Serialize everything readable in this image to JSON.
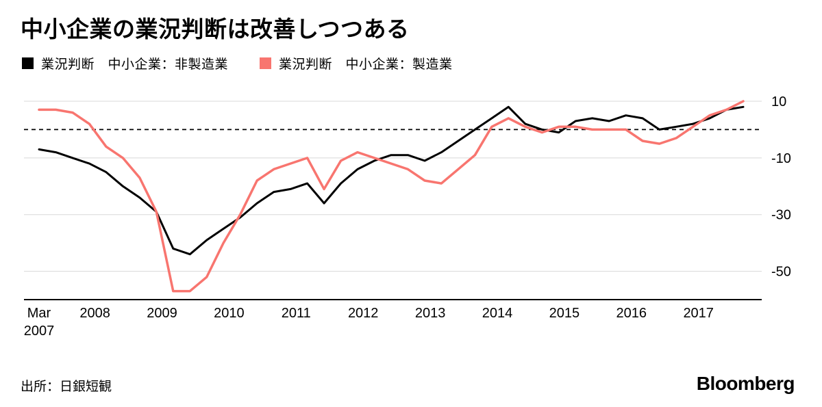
{
  "header": {
    "title": "中小企業の業況判断は改善しつつある"
  },
  "legend": [
    {
      "label": "業況判断　中小企業：非製造業",
      "color": "#000000"
    },
    {
      "label": "業況判断　中小企業：製造業",
      "color": "#f8756f"
    }
  ],
  "footer": {
    "source": "出所：日銀短観",
    "brand": "Bloomberg"
  },
  "chart_data": {
    "type": "line",
    "frequency": "quarterly",
    "x_start": "Mar 2007",
    "x_end": "Sep 2017",
    "x_ticks": [
      {
        "line1": "Mar",
        "line2": "2007"
      },
      {
        "line1": "2008"
      },
      {
        "line1": "2009"
      },
      {
        "line1": "2010"
      },
      {
        "line1": "2011"
      },
      {
        "line1": "2012"
      },
      {
        "line1": "2013"
      },
      {
        "line1": "2014"
      },
      {
        "line1": "2015"
      },
      {
        "line1": "2016"
      },
      {
        "line1": "2017"
      }
    ],
    "ylim": [
      -60,
      10
    ],
    "yticks": [
      10,
      -10,
      -30,
      -50
    ],
    "zero_line": 0,
    "grid_color": "#d8d8d8",
    "series": [
      {
        "name": "業況判断　中小企業：非製造業",
        "color": "#000000",
        "stroke_width": 3,
        "values": [
          -7,
          -8,
          -10,
          -12,
          -15,
          -20,
          -24,
          -29,
          -42,
          -44,
          -39,
          -35,
          -31,
          -26,
          -22,
          -21,
          -19,
          -26,
          -19,
          -14,
          -11,
          -9,
          -9,
          -11,
          -8,
          -4,
          0,
          4,
          8,
          2,
          0,
          -1,
          3,
          4,
          3,
          5,
          4,
          0,
          1,
          2,
          4,
          7,
          8
        ]
      },
      {
        "name": "業況判断　中小企業：製造業",
        "color": "#f8756f",
        "stroke_width": 3.5,
        "values": [
          7,
          7,
          6,
          2,
          -6,
          -10,
          -17,
          -29,
          -57,
          -57,
          -52,
          -40,
          -30,
          -18,
          -14,
          -12,
          -10,
          -21,
          -11,
          -8,
          -10,
          -12,
          -14,
          -18,
          -19,
          -14,
          -9,
          1,
          4,
          1,
          -1,
          1,
          1,
          0,
          0,
          0,
          -4,
          -5,
          -3,
          1,
          5,
          7,
          10
        ]
      }
    ]
  }
}
